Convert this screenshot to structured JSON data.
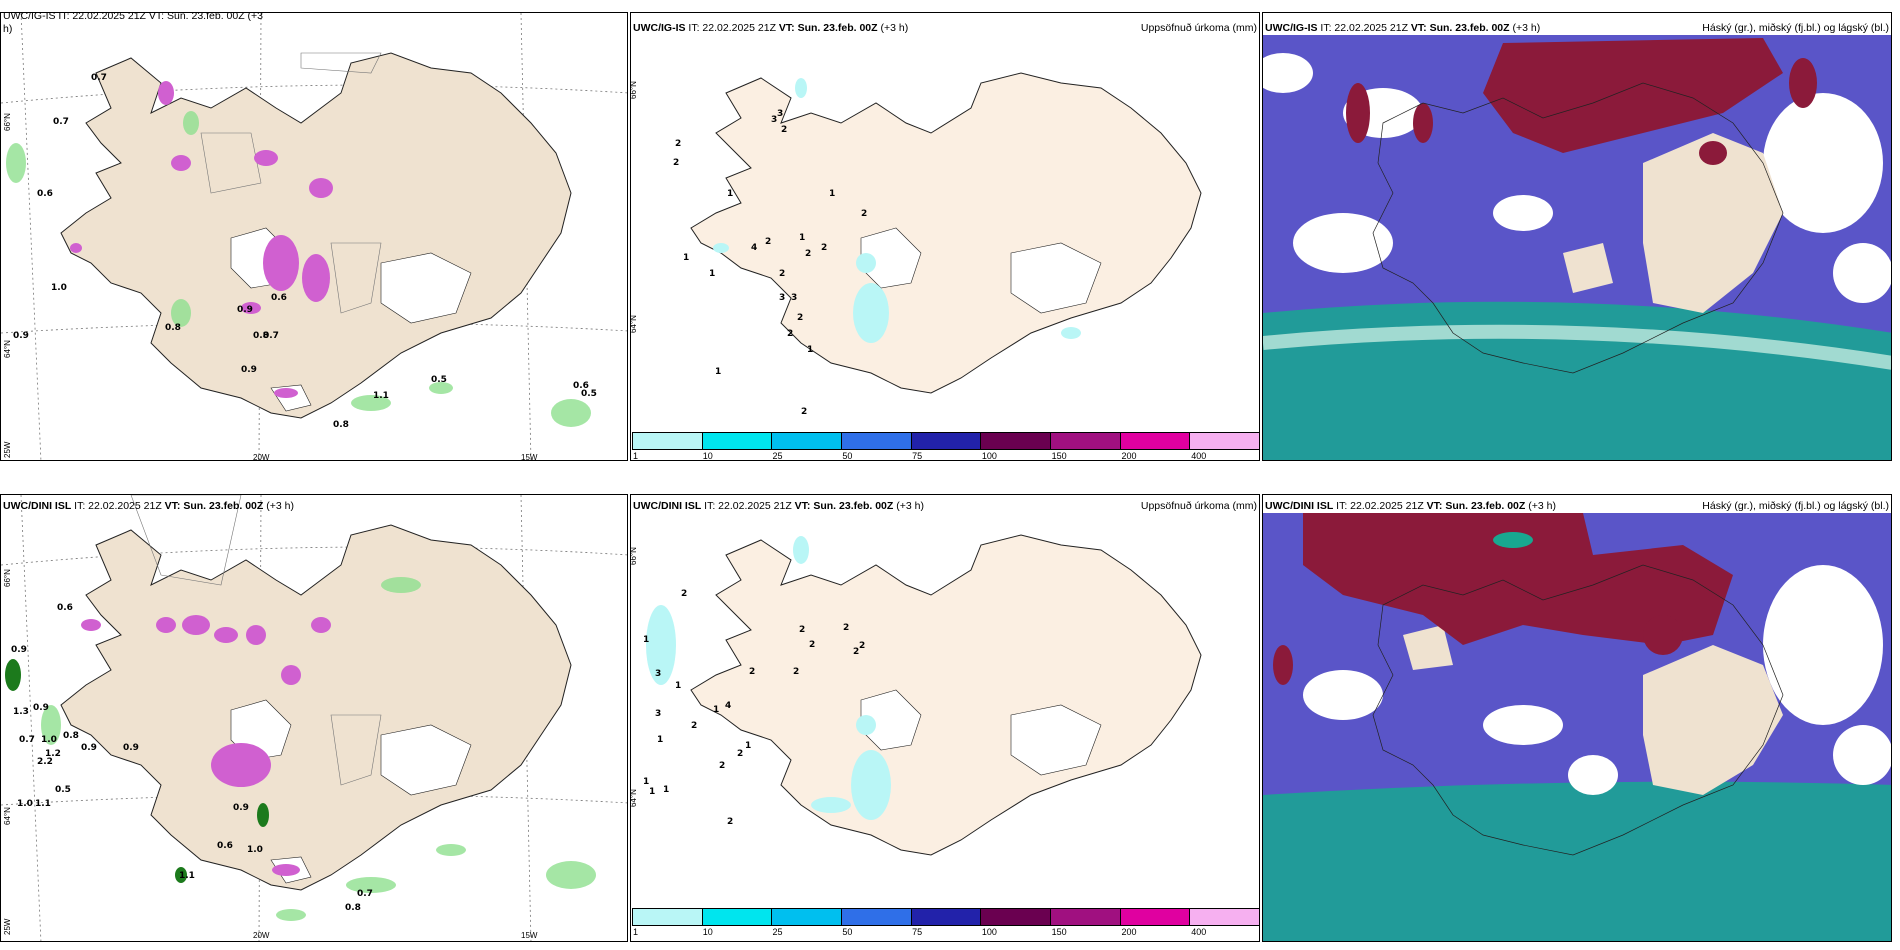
{
  "rows": [
    {
      "model": "UWC/IG-IS",
      "it": "IT: 22.02.2025 21Z",
      "vt_label": "VT:",
      "vt": "Sun. 23.feb. 00Z",
      "lead": "(+3 h)",
      "left_header_trunc": "UWC/IG-IS IT: 22.02.2025 21Z VT: Sun. 23.feb. 00Z (+3",
      "left_header_wrap": "h)"
    },
    {
      "model": "UWC/DINI ISL",
      "it": "IT: 22.02.2025 21Z",
      "vt_label": "VT:",
      "vt": "Sun. 23.feb. 00Z",
      "lead": "(+3 h)"
    }
  ],
  "precip_title": "Uppsöfnuð úrkoma (mm)",
  "cloud_title": "Háský (gr.), miðský (fj.bl.) og lágský (bl.)",
  "colorbar": {
    "ticks": [
      "1",
      "10",
      "25",
      "50",
      "75",
      "100",
      "150",
      "200",
      "400"
    ],
    "colors": [
      "#b9f6f6",
      "#00e5ee",
      "#00bfef",
      "#2f6fe8",
      "#2222aa",
      "#6a0050",
      "#a01080",
      "#e000a0",
      "#f6b0f0"
    ]
  },
  "axis_labels": {
    "lat_66": "66°N",
    "lat_64": "64°N",
    "lon_25": "25W",
    "lon_20": "20W",
    "lon_15": "15W"
  },
  "colors": {
    "land": "#efe2d0",
    "land_precip": "#fbefe2",
    "cloud_high": "#8b1a3a",
    "cloud_mid": "#5a55c8",
    "cloud_low": "#18a890",
    "green": "#8fe08f",
    "magenta": "#d060d0"
  },
  "top_left_values": [
    "0.7",
    "0.6",
    "1.0",
    "0.9",
    "0.8",
    "0.9",
    "0.6",
    "0.8",
    "0.7",
    "0.9",
    "0.5",
    "1.1",
    "0.8",
    "0.6",
    "0.5",
    "0.7"
  ],
  "bottom_left_values": [
    "0.6",
    "0.9",
    "1.3",
    "0.9",
    "0.7",
    "1.0",
    "0.8",
    "0.9",
    "2.2",
    "1.2",
    "0.9",
    "0.5",
    "1.0",
    "1.1",
    "0.6",
    "1.0",
    "0.7",
    "0.8",
    "1.1",
    "0.9"
  ],
  "top_precip_values": [
    "2",
    "2",
    "3",
    "1",
    "1",
    "3",
    "2",
    "4",
    "2",
    "1",
    "2",
    "3",
    "2",
    "1",
    "2",
    "2",
    "3",
    "2",
    "2",
    "1",
    "1",
    "1",
    "2"
  ],
  "bottom_precip_values": [
    "1",
    "3",
    "2",
    "1",
    "3",
    "2",
    "1",
    "2",
    "2",
    "2",
    "2",
    "1",
    "2",
    "2",
    "2",
    "1",
    "4",
    "2",
    "2",
    "2",
    "1",
    "1",
    "1"
  ]
}
